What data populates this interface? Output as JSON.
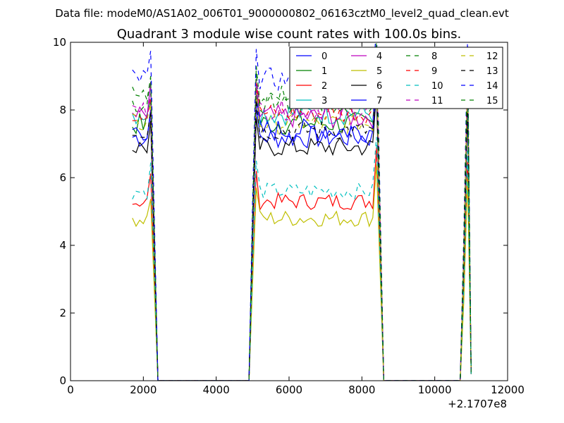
{
  "figure": {
    "suptitle": "Data file: modeM0/AS1A02_006T01_9000000802_06163cztM0_level2_quad_clean.evt"
  },
  "chart_data": {
    "type": "line",
    "title": "Quadrant 3 module wise count rates with 100.0s bins.",
    "xlabel": "",
    "ylabel": "",
    "x_offset_label": "+2.1707e8",
    "xlim": [
      0,
      12000
    ],
    "ylim": [
      0,
      10
    ],
    "xticks": [
      0,
      2000,
      4000,
      6000,
      8000,
      10000,
      12000
    ],
    "xtick_labels": [
      "0",
      "2000",
      "4000",
      "6000",
      "8000",
      "10000",
      "12000"
    ],
    "yticks": [
      0,
      2,
      4,
      6,
      8,
      10
    ],
    "ytick_labels": [
      "0",
      "2",
      "4",
      "6",
      "8",
      "10"
    ],
    "grid": false,
    "legend": {
      "placement": "top-right",
      "columns": 4
    },
    "segments": [
      {
        "x_start": 1700,
        "x_end": 2200,
        "x_drop": 2400
      },
      {
        "x_rise": 4900,
        "x_start": 5100,
        "x_end": 8400,
        "x_drop": 8600
      },
      {
        "x_rise": 10700,
        "x_peak": 10900,
        "x_end": 11000
      }
    ],
    "series": [
      {
        "name": "0",
        "color": "#0000ff",
        "dash": "solid",
        "level": 7.2,
        "noise": 0.35
      },
      {
        "name": "1",
        "color": "#008000",
        "dash": "solid",
        "level": 7.6,
        "noise": 0.35
      },
      {
        "name": "2",
        "color": "#ff0000",
        "dash": "solid",
        "level": 5.3,
        "noise": 0.25
      },
      {
        "name": "3",
        "color": "#00bfbf",
        "dash": "solid",
        "level": 7.9,
        "noise": 0.35
      },
      {
        "name": "4",
        "color": "#bf00bf",
        "dash": "solid",
        "level": 7.8,
        "noise": 0.35
      },
      {
        "name": "5",
        "color": "#bfbf00",
        "dash": "solid",
        "level": 4.8,
        "noise": 0.25
      },
      {
        "name": "6",
        "color": "#000000",
        "dash": "solid",
        "level": 6.9,
        "noise": 0.3
      },
      {
        "name": "7",
        "color": "#0000ff",
        "dash": "solid",
        "level": 7.4,
        "noise": 0.35
      },
      {
        "name": "8",
        "color": "#008000",
        "dash": "dashed",
        "level": 8.2,
        "noise": 0.3
      },
      {
        "name": "9",
        "color": "#ff0000",
        "dash": "dashed",
        "level": 7.9,
        "noise": 0.3
      },
      {
        "name": "10",
        "color": "#00bfbf",
        "dash": "dashed",
        "level": 5.6,
        "noise": 0.25
      },
      {
        "name": "11",
        "color": "#bf00bf",
        "dash": "dashed",
        "level": 8.0,
        "noise": 0.3
      },
      {
        "name": "12",
        "color": "#bfbf00",
        "dash": "dashed",
        "level": 7.6,
        "noise": 0.3
      },
      {
        "name": "13",
        "color": "#000000",
        "dash": "dashed",
        "level": 7.4,
        "noise": 0.3
      },
      {
        "name": "14",
        "color": "#0000ff",
        "dash": "dashed",
        "level": 8.9,
        "noise": 0.35
      },
      {
        "name": "15",
        "color": "#008000",
        "dash": "dashed",
        "level": 8.4,
        "noise": 0.35
      }
    ]
  }
}
